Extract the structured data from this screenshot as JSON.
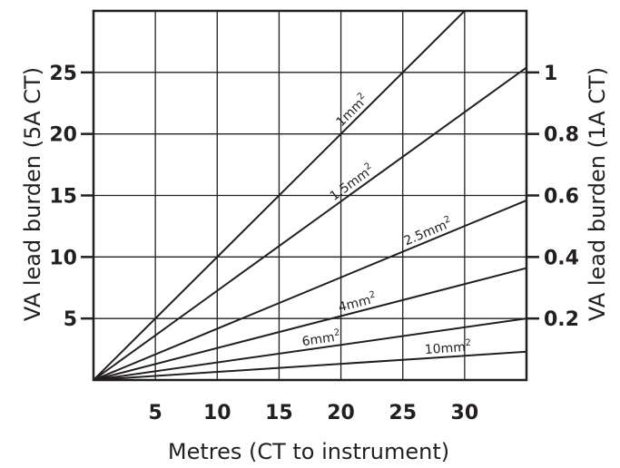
{
  "chart_data": {
    "type": "line",
    "xlabel": "Metres (CT to instrument)",
    "ylabel_left": "VA lead burden (5A CT)",
    "ylabel_right": "VA lead burden (1A CT)",
    "xlim": [
      0,
      35
    ],
    "ylim_left": [
      0,
      30
    ],
    "ylim_right": [
      0,
      1.2
    ],
    "x_ticks": [
      "5",
      "10",
      "15",
      "20",
      "25",
      "30"
    ],
    "y_ticks_left": [
      "5",
      "10",
      "15",
      "20",
      "25"
    ],
    "y_ticks_right": [
      "0.2",
      "0.4",
      "0.6",
      "0.8",
      "1"
    ],
    "grid": true,
    "series": [
      {
        "name": "1mm",
        "x": [
          0,
          30
        ],
        "y": [
          0,
          30
        ]
      },
      {
        "name": "1.5mm",
        "x": [
          0,
          35
        ],
        "y": [
          0,
          25.4
        ]
      },
      {
        "name": "2.5mm",
        "x": [
          0,
          35
        ],
        "y": [
          0,
          14.6
        ]
      },
      {
        "name": "4mm",
        "x": [
          0,
          35
        ],
        "y": [
          0,
          9.1
        ]
      },
      {
        "name": "6mm",
        "x": [
          0,
          35
        ],
        "y": [
          0,
          5.0
        ]
      },
      {
        "name": "10mm",
        "x": [
          0,
          35
        ],
        "y": [
          0,
          2.3
        ]
      }
    ],
    "label_superscript": "2"
  }
}
